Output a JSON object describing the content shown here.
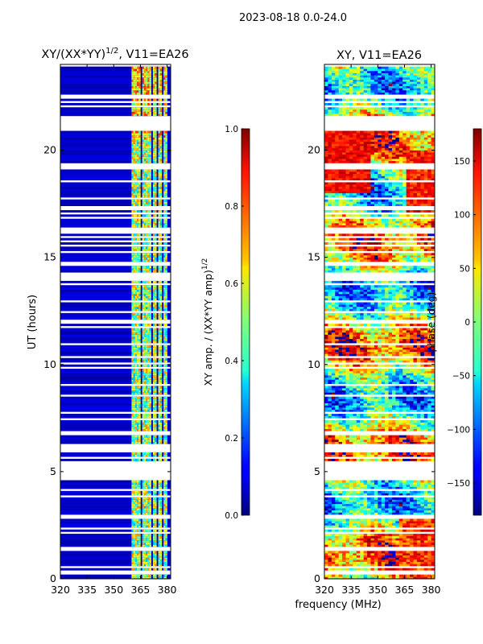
{
  "suptitle": "2023-08-18 0.0-24.0",
  "xlabel_shared": "frequency (MHz)",
  "chart_data": [
    {
      "type": "heatmap",
      "title_main": "XY/(XX*YY)",
      "title_sup": "1/2",
      "title_rest": ", V11=EA26",
      "ylabel": "UT (hours)",
      "x_range": [
        320,
        382
      ],
      "y_range": [
        0,
        24
      ],
      "x_ticks": [
        320,
        335,
        350,
        365,
        380
      ],
      "y_ticks": [
        0,
        5,
        10,
        15,
        20
      ],
      "colormap": "jet",
      "colorbar": {
        "label": "XY amp. / (XX*YY amp)",
        "label_sup": "1/2",
        "range": [
          0.0,
          1.0
        ],
        "ticks": [
          "0.0",
          "0.2",
          "0.4",
          "0.6",
          "0.8",
          "1.0"
        ]
      },
      "gaps_hours": [
        [
          21.0,
          21.6
        ],
        [
          4.6,
          5.5
        ],
        [
          1.3,
          1.5
        ],
        [
          0.3,
          0.4
        ],
        [
          6.1,
          6.3
        ],
        [
          11.9,
          12.1
        ],
        [
          17.2,
          17.4
        ],
        [
          22.4,
          22.6
        ]
      ],
      "bright_channels_MHz": [
        [
          360.5,
          362.5
        ],
        [
          363,
          365
        ],
        [
          366,
          368
        ],
        [
          368.5,
          371
        ],
        [
          372,
          374
        ],
        [
          375,
          377
        ],
        [
          378,
          380
        ]
      ],
      "background_value": 0.05
    },
    {
      "type": "heatmap",
      "title": "XY, V11=EA26",
      "ylabel": "",
      "x_range": [
        320,
        382
      ],
      "y_range": [
        0,
        24
      ],
      "x_ticks": [
        320,
        335,
        350,
        365,
        380
      ],
      "y_ticks": [
        0,
        5,
        10,
        15,
        20
      ],
      "colormap": "jet",
      "colorbar": {
        "label": "phase (deg)",
        "range": [
          -180,
          180
        ],
        "ticks": [
          "-150",
          "-100",
          "-50",
          "0",
          "50",
          "100",
          "150"
        ]
      },
      "gaps_hours": [
        [
          21.0,
          21.6
        ],
        [
          4.6,
          5.5
        ],
        [
          1.3,
          1.5
        ],
        [
          0.3,
          0.4
        ],
        [
          6.1,
          6.3
        ],
        [
          11.9,
          12.1
        ],
        [
          17.2,
          17.4
        ],
        [
          22.4,
          22.6
        ]
      ]
    }
  ]
}
